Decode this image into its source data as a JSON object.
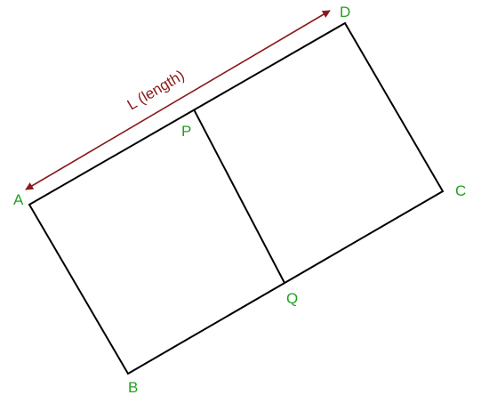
{
  "diagram": {
    "points": {
      "A": "A",
      "B": "B",
      "C": "C",
      "D": "D",
      "P": "P",
      "Q": "Q"
    },
    "length_label": "L (length)",
    "colors": {
      "shape_stroke": "#000000",
      "point_label": "#22a022",
      "dimension": "#8b1a1a"
    }
  }
}
